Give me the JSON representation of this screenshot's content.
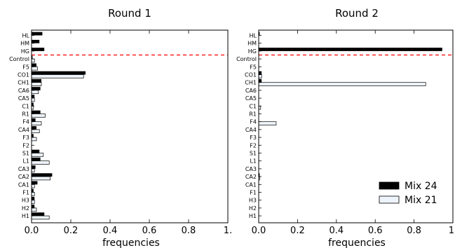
{
  "chart_data": [
    {
      "type": "bar",
      "orientation": "horizontal",
      "title": "Round 1",
      "xlabel": "frequencies",
      "ylabel": "",
      "xlim": [
        0,
        1.0
      ],
      "x_ticks": [
        "0.0",
        "0.2",
        "0.4",
        "0.6",
        "0.8",
        "1."
      ],
      "categories": [
        "HL",
        "HM",
        "HG",
        "Control",
        "F5",
        "CO1",
        "CH1",
        "CA6",
        "CA5",
        "C1",
        "R1",
        "F4",
        "CA4",
        "F3",
        "F2",
        "S1",
        "L1",
        "CA3",
        "CA2",
        "CA1",
        "F1",
        "H3",
        "H2",
        "H1"
      ],
      "reference_line": {
        "between": [
          "HG",
          "Control"
        ],
        "color": "#ff0000",
        "style": "dashed"
      },
      "series": [
        {
          "name": "Mix 24",
          "color": "#000000",
          "values": [
            0.055,
            0.04,
            0.065,
            0.005,
            0.025,
            0.275,
            0.05,
            0.045,
            0.015,
            0.01,
            0.045,
            0.02,
            0.025,
            0.01,
            0.0,
            0.04,
            0.045,
            0.02,
            0.105,
            0.03,
            0.01,
            0.015,
            0.015,
            0.065
          ]
        },
        {
          "name": "Mix 21",
          "color": "#eef4fb",
          "values": [
            0.0,
            0.0,
            0.0,
            0.015,
            0.03,
            0.265,
            0.05,
            0.035,
            0.015,
            0.01,
            0.07,
            0.05,
            0.04,
            0.025,
            0.0,
            0.06,
            0.09,
            0.015,
            0.095,
            0.015,
            0.015,
            0.015,
            0.025,
            0.09
          ]
        }
      ]
    },
    {
      "type": "bar",
      "orientation": "horizontal",
      "title": "Round 2",
      "xlabel": "frequencies",
      "ylabel": "",
      "xlim": [
        0,
        1.0
      ],
      "x_ticks": [
        "0.0",
        "0.2",
        "0.4",
        "0.6",
        "0.8",
        "1."
      ],
      "categories": [
        "HL",
        "HM",
        "HG",
        "Control",
        "F5",
        "CO1",
        "CH1",
        "CA6",
        "CA5",
        "C1",
        "R1",
        "F4",
        "CA4",
        "F3",
        "F2",
        "S1",
        "L1",
        "CA3",
        "CA2",
        "CA1",
        "F1",
        "H3",
        "H2",
        "H1"
      ],
      "reference_line": {
        "between": [
          "HG",
          "Control"
        ],
        "color": "#ff0000",
        "style": "dashed"
      },
      "legend": {
        "placement": "bottom-right",
        "entries": [
          "Mix 24",
          "Mix 21"
        ]
      },
      "series": [
        {
          "name": "Mix 24",
          "color": "#000000",
          "values": [
            0.005,
            0.0,
            0.945,
            0.0,
            0.0,
            0.015,
            0.015,
            0.0,
            0.0,
            0.0,
            0.0,
            0.0,
            0.0,
            0.0,
            0.0,
            0.0,
            0.0,
            0.0,
            0.005,
            0.0,
            0.0,
            0.0,
            0.0,
            0.0
          ]
        },
        {
          "name": "Mix 21",
          "color": "#eef4fb",
          "values": [
            0.0,
            0.0,
            0.0,
            0.0,
            0.0,
            0.015,
            0.86,
            0.0,
            0.0,
            0.01,
            0.0,
            0.09,
            0.0,
            0.0,
            0.0,
            0.0,
            0.0,
            0.0,
            0.005,
            0.0,
            0.0,
            0.0,
            0.0,
            0.0
          ]
        }
      ]
    }
  ]
}
